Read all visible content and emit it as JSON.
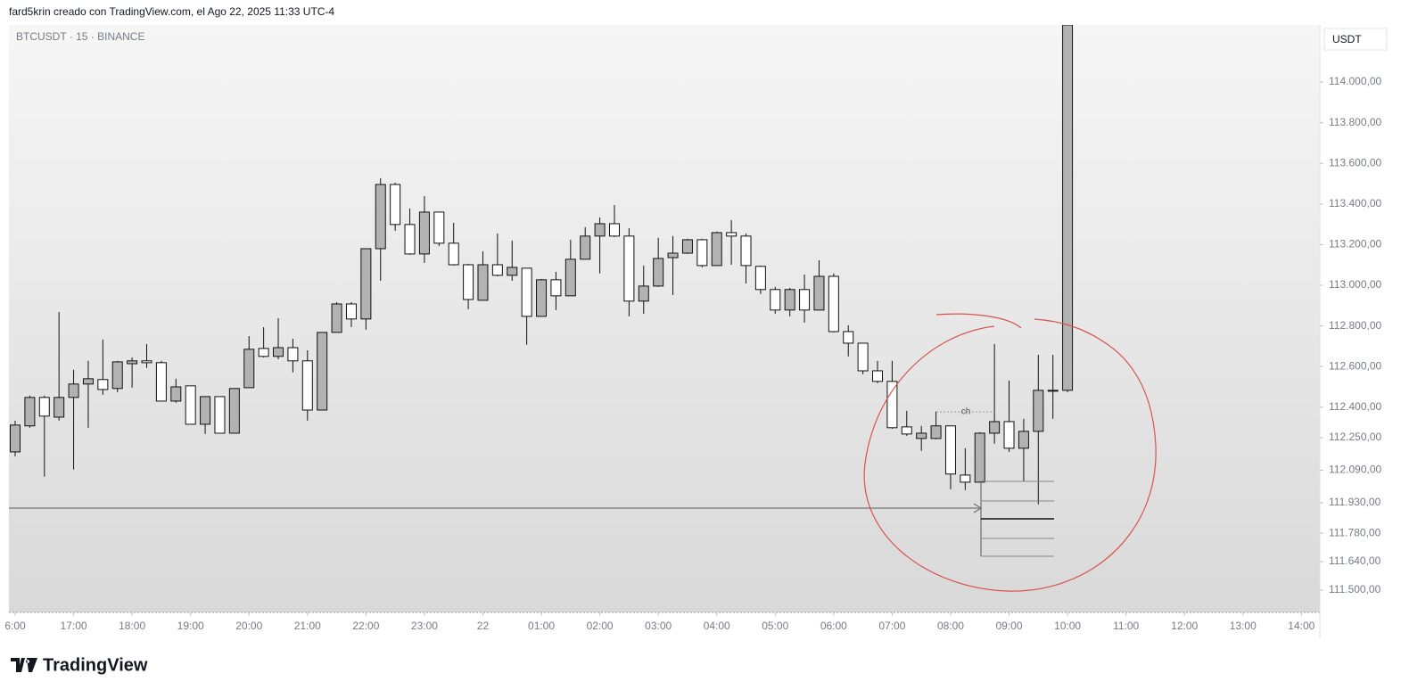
{
  "header": "fard5krin creado con TradingView.com, el Ago 22, 2025 11:33 UTC-4",
  "brand": "TradingView",
  "chart_data": {
    "type": "candlestick",
    "symbol": "BTCUSDT · 15 · BINANCE",
    "currency": "USDT",
    "annotation": "ch",
    "up_color": "#b2b2b2",
    "down_color": "#ffffff",
    "x": [
      "16:00",
      "16:15",
      "16:30",
      "16:45",
      "17:00",
      "17:15",
      "17:30",
      "17:45",
      "18:00",
      "18:15",
      "18:30",
      "18:45",
      "19:00",
      "19:15",
      "19:30",
      "19:45",
      "20:00",
      "20:15",
      "20:30",
      "20:45",
      "21:00",
      "21:15",
      "21:30",
      "21:45",
      "22:00",
      "22:15",
      "22:30",
      "22:45",
      "23:00",
      "23:15",
      "23:30",
      "23:45",
      "00:00",
      "00:15",
      "00:30",
      "00:45",
      "01:00",
      "01:15",
      "01:30",
      "01:45",
      "02:00",
      "02:15",
      "02:30",
      "02:45",
      "03:00",
      "03:15",
      "03:30",
      "03:45",
      "04:00",
      "04:15",
      "04:30",
      "04:45",
      "05:00",
      "05:15",
      "05:30",
      "05:45",
      "06:00",
      "06:15",
      "06:30",
      "06:45",
      "07:00",
      "07:15",
      "07:30",
      "07:45",
      "08:00",
      "08:15",
      "08:30",
      "08:45",
      "09:00",
      "09:15",
      "09:30",
      "09:45",
      "10:00"
    ],
    "open": [
      112180,
      112308,
      112448,
      112351,
      112448,
      112514,
      112536,
      112492,
      112614,
      112628,
      112619,
      112430,
      112505,
      112316,
      112452,
      112272,
      112496,
      112689,
      112650,
      112693,
      112628,
      112386,
      112768,
      112908,
      112834,
      113180,
      113496,
      113299,
      113154,
      113360,
      113207,
      113101,
      112926,
      113101,
      113049,
      113084,
      112847,
      113027,
      112948,
      113128,
      113242,
      113303,
      113242,
      112922,
      112996,
      113136,
      113158,
      113224,
      113097,
      113259,
      113242,
      113093,
      112979,
      112878,
      112979,
      112878,
      113044,
      112772,
      112715,
      112579,
      112527,
      112303,
      112246,
      112246,
      112308,
      112066,
      112031,
      112272,
      112329,
      112198,
      112281,
      112483,
      112483
    ],
    "high": [
      112334,
      112457,
      112457,
      112869,
      112584,
      112628,
      112733,
      112628,
      112645,
      112711,
      112628,
      112540,
      112505,
      112452,
      112452,
      112492,
      112750,
      112794,
      112838,
      112737,
      112680,
      112768,
      112917,
      112917,
      113180,
      113527,
      113505,
      113378,
      113439,
      113360,
      113307,
      113106,
      113167,
      113255,
      113220,
      113084,
      113031,
      113066,
      113224,
      113286,
      113334,
      113395,
      113281,
      113097,
      113233,
      113242,
      113229,
      113229,
      113264,
      113321,
      113255,
      113097,
      112992,
      112987,
      113053,
      113123,
      113058,
      112803,
      112715,
      112628,
      112628,
      112382,
      112308,
      112378,
      112308,
      112198,
      112277,
      112711,
      112531,
      112343,
      112658,
      112658,
      114281
    ],
    "low": [
      112158,
      112299,
      112058,
      112334,
      112093,
      112299,
      112461,
      112474,
      112496,
      112593,
      112430,
      112422,
      112316,
      112268,
      112272,
      112272,
      112496,
      112645,
      112636,
      112571,
      112334,
      112386,
      112768,
      112794,
      112781,
      113022,
      113268,
      113150,
      113110,
      113193,
      113097,
      112882,
      112926,
      113044,
      113022,
      112707,
      112847,
      112878,
      112948,
      113128,
      113058,
      113237,
      112847,
      112860,
      112992,
      112952,
      113154,
      113088,
      113097,
      113101,
      113009,
      112957,
      112860,
      112847,
      112816,
      112878,
      112768,
      112650,
      112562,
      112518,
      112294,
      112259,
      112185,
      112242,
      111996,
      111992,
      112031,
      112220,
      112180,
      112036,
      111922,
      112343,
      112474
    ],
    "close": [
      112312,
      112448,
      112356,
      112448,
      112514,
      112540,
      112487,
      112623,
      112628,
      112619,
      112430,
      112500,
      112316,
      112452,
      112272,
      112492,
      112685,
      112650,
      112693,
      112628,
      112386,
      112768,
      112908,
      112834,
      113180,
      113496,
      113299,
      113154,
      113360,
      113207,
      113101,
      112930,
      113101,
      113049,
      113088,
      112847,
      113027,
      112948,
      113128,
      113242,
      113303,
      113242,
      112922,
      112996,
      113132,
      113158,
      113224,
      113097,
      113259,
      113242,
      113097,
      112979,
      112878,
      112979,
      112878,
      113044,
      112772,
      112715,
      112579,
      112527,
      112299,
      112268,
      112272,
      112308,
      112071,
      112031,
      112272,
      112329,
      112198,
      112281,
      112483,
      112483,
      114281
    ],
    "ylim": [
      111390,
      114281
    ],
    "yticks": [
      {
        "value": 114000,
        "label": "114.000,00"
      },
      {
        "value": 113800,
        "label": "113.800,00"
      },
      {
        "value": 113600,
        "label": "113.600,00"
      },
      {
        "value": 113400,
        "label": "113.400,00"
      },
      {
        "value": 113200,
        "label": "113.200,00"
      },
      {
        "value": 113000,
        "label": "113.000,00"
      },
      {
        "value": 112800,
        "label": "112.800,00"
      },
      {
        "value": 112600,
        "label": "112.600,00"
      },
      {
        "value": 112400,
        "label": "112.400,00"
      },
      {
        "value": 112250,
        "label": "112.250,00"
      },
      {
        "value": 112090,
        "label": "112.090,00"
      },
      {
        "value": 111930,
        "label": "111.930,00"
      },
      {
        "value": 111780,
        "label": "111.780,00"
      },
      {
        "value": 111640,
        "label": "111.640,00"
      },
      {
        "value": 111500,
        "label": "111.500,00"
      }
    ],
    "xticks": [
      {
        "value": "16:00",
        "label": "6:00"
      },
      "17:00",
      "18:00",
      "19:00",
      "20:00",
      "21:00",
      "22:00",
      "23:00",
      {
        "value": "00:00",
        "label": "22"
      },
      "01:00",
      "02:00",
      "03:00",
      "04:00",
      "05:00",
      "06:00",
      "07:00",
      "08:00",
      "09:00",
      "10:00",
      "11:00",
      "12:00",
      "13:00",
      "14:00"
    ]
  }
}
